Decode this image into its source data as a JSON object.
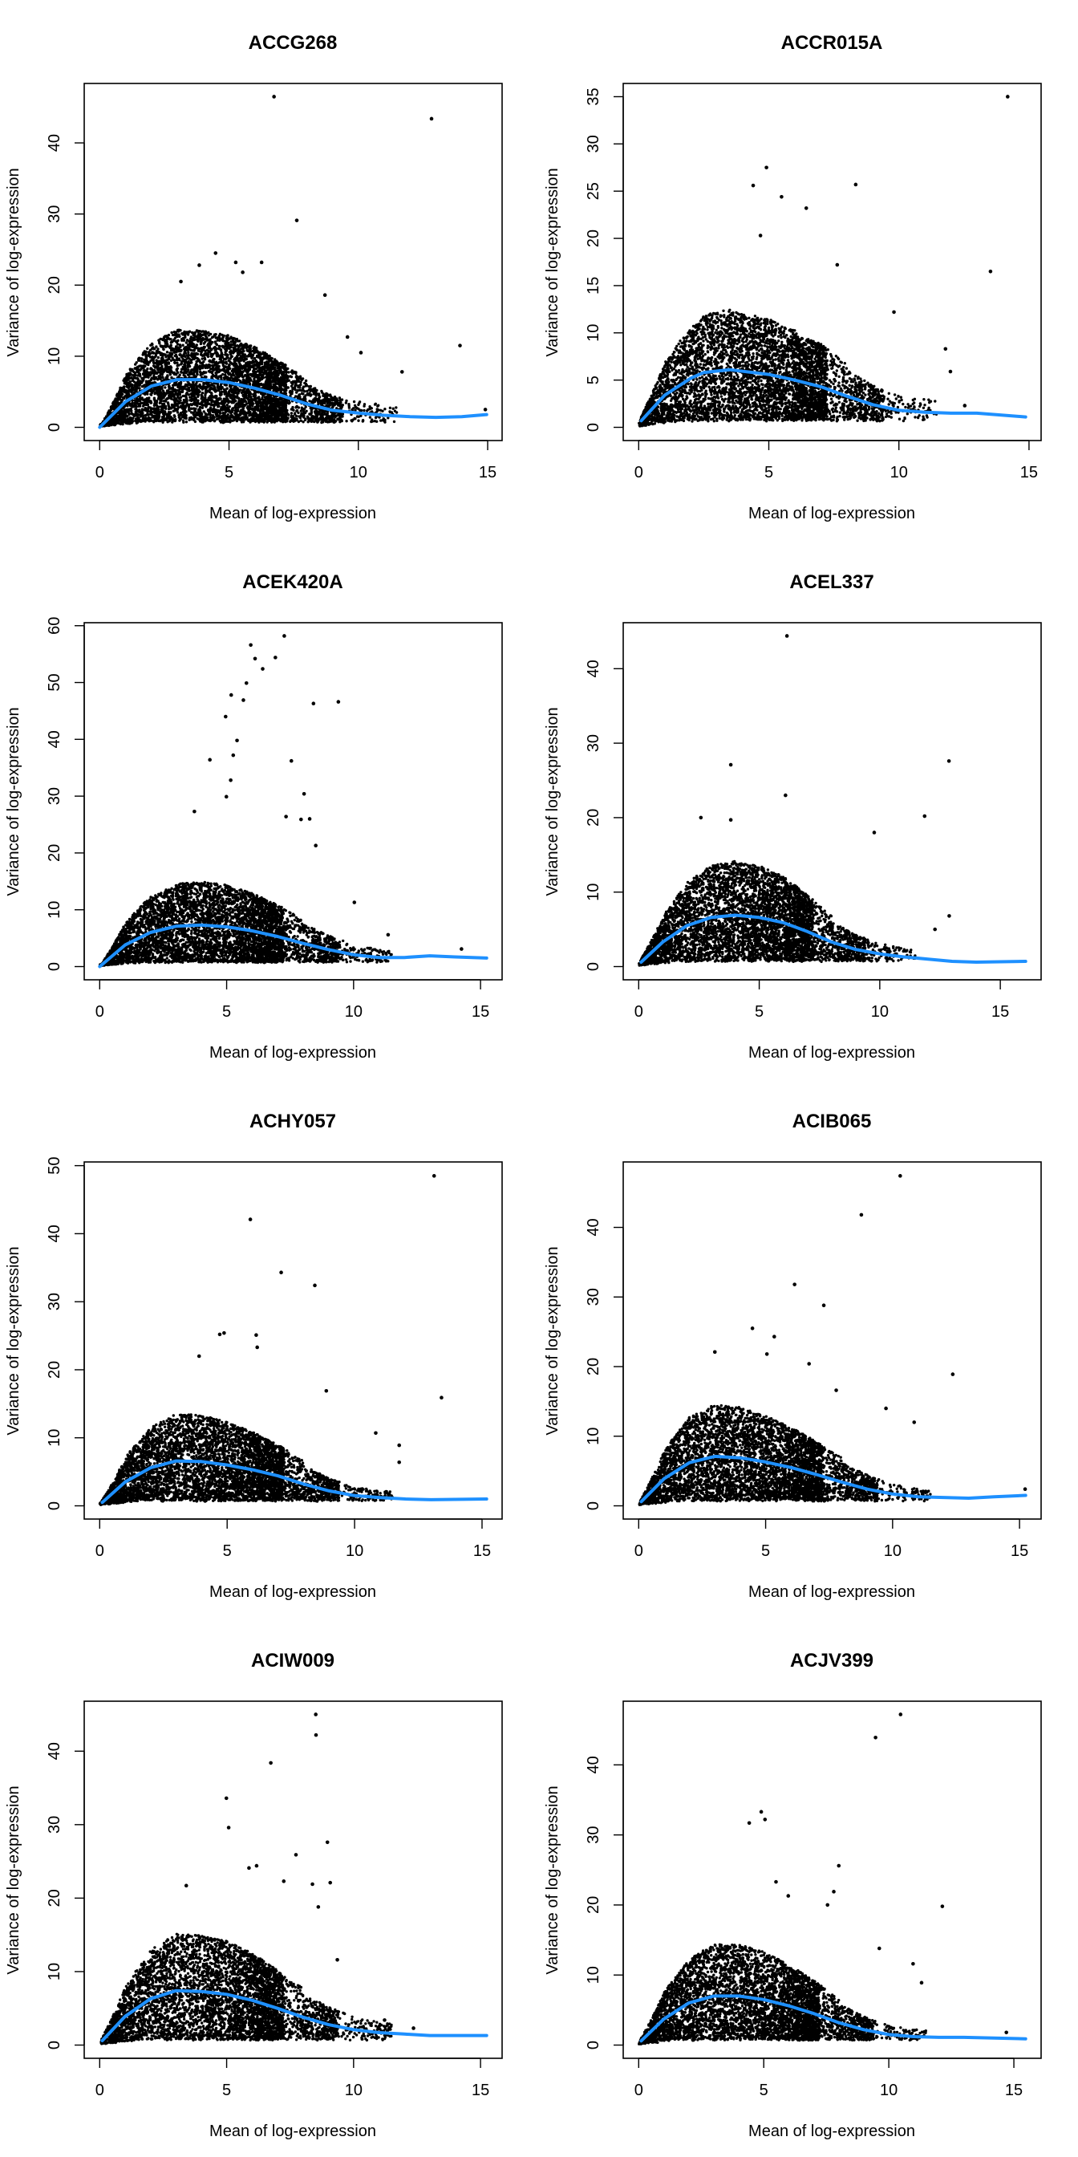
{
  "chart_data": [
    {
      "type": "scatter",
      "title": "ACCG268",
      "xlabel": "Mean of log-expression",
      "ylabel": "Variance of log-expression",
      "xlim": [
        0,
        14.96
      ],
      "ylim": [
        0,
        46.5
      ],
      "xticks": [
        0,
        5,
        10,
        15
      ],
      "yticks": [
        0,
        10,
        20,
        30,
        40
      ],
      "outliers": [
        [
          6.74,
          46.5
        ],
        [
          12.83,
          43.4
        ],
        [
          7.62,
          29.1
        ],
        [
          4.48,
          24.5
        ],
        [
          3.85,
          22.8
        ],
        [
          5.26,
          23.2
        ],
        [
          6.26,
          23.2
        ],
        [
          5.53,
          21.8
        ],
        [
          3.14,
          20.5
        ],
        [
          8.71,
          18.6
        ],
        [
          9.58,
          12.7
        ],
        [
          13.93,
          11.5
        ],
        [
          10.1,
          10.5
        ],
        [
          11.69,
          7.8
        ],
        [
          14.91,
          2.5
        ]
      ],
      "trend": [
        [
          0,
          0
        ],
        [
          1,
          3.6
        ],
        [
          2,
          5.8
        ],
        [
          3,
          6.7
        ],
        [
          4,
          6.7
        ],
        [
          5,
          6.3
        ],
        [
          6,
          5.5
        ],
        [
          7,
          4.5
        ],
        [
          8,
          3.3
        ],
        [
          9,
          2.4
        ],
        [
          10,
          2.0
        ],
        [
          11,
          1.7
        ],
        [
          12,
          1.5
        ],
        [
          13,
          1.4
        ],
        [
          14,
          1.5
        ],
        [
          14.96,
          1.8
        ]
      ]
    },
    {
      "type": "scatter",
      "title": "ACCR015A",
      "xlabel": "Mean of log-expression",
      "ylabel": "Variance of log-expression",
      "xlim": [
        0,
        14.87
      ],
      "ylim": [
        0,
        35.0
      ],
      "xticks": [
        0,
        5,
        10,
        15
      ],
      "yticks": [
        0,
        5,
        10,
        15,
        20,
        25,
        30,
        35
      ],
      "outliers": [
        [
          14.18,
          35.0
        ],
        [
          4.91,
          27.5
        ],
        [
          4.4,
          25.6
        ],
        [
          8.34,
          25.7
        ],
        [
          5.49,
          24.4
        ],
        [
          6.44,
          23.2
        ],
        [
          13.52,
          16.5
        ],
        [
          4.68,
          20.3
        ],
        [
          11.79,
          8.3
        ],
        [
          9.81,
          12.2
        ],
        [
          11.98,
          5.9
        ],
        [
          7.63,
          17.2
        ],
        [
          12.53,
          2.3
        ]
      ],
      "trend": [
        [
          0.1,
          0.7
        ],
        [
          1,
          3.4
        ],
        [
          2,
          5.2
        ],
        [
          2.5,
          5.8
        ],
        [
          3.5,
          6.1
        ],
        [
          5,
          5.6
        ],
        [
          6,
          5.0
        ],
        [
          7,
          4.3
        ],
        [
          8,
          3.3
        ],
        [
          9,
          2.4
        ],
        [
          10,
          1.8
        ],
        [
          11,
          1.6
        ],
        [
          12,
          1.5
        ],
        [
          13,
          1.5
        ],
        [
          14.87,
          1.1
        ]
      ]
    },
    {
      "type": "scatter",
      "title": "ACEK420A",
      "xlabel": "Mean of log-expression",
      "ylabel": "Variance of log-expression",
      "xlim": [
        0,
        15.24
      ],
      "ylim": [
        0,
        58.2
      ],
      "xticks": [
        0,
        5,
        10,
        15
      ],
      "yticks": [
        0,
        10,
        20,
        30,
        40,
        50,
        60
      ],
      "outliers": [
        [
          7.27,
          58.2
        ],
        [
          5.95,
          56.6
        ],
        [
          6.92,
          54.4
        ],
        [
          6.12,
          54.2
        ],
        [
          6.42,
          52.4
        ],
        [
          5.78,
          49.9
        ],
        [
          5.18,
          47.8
        ],
        [
          5.66,
          46.9
        ],
        [
          4.96,
          44.0
        ],
        [
          8.42,
          46.3
        ],
        [
          9.4,
          46.6
        ],
        [
          5.41,
          39.8
        ],
        [
          4.34,
          36.4
        ],
        [
          7.55,
          36.2
        ],
        [
          5.26,
          37.2
        ],
        [
          5.16,
          32.8
        ],
        [
          8.05,
          30.4
        ],
        [
          4.99,
          29.9
        ],
        [
          7.34,
          26.4
        ],
        [
          7.93,
          25.9
        ],
        [
          8.27,
          26.0
        ],
        [
          8.51,
          21.3
        ],
        [
          3.73,
          27.3
        ],
        [
          10.03,
          11.3
        ],
        [
          11.36,
          5.6
        ],
        [
          14.25,
          3.1
        ]
      ],
      "trend": [
        [
          0,
          0
        ],
        [
          1,
          3.8
        ],
        [
          2,
          6.0
        ],
        [
          3,
          7.1
        ],
        [
          4,
          7.3
        ],
        [
          5,
          7.0
        ],
        [
          6,
          6.3
        ],
        [
          7,
          5.3
        ],
        [
          8,
          4.1
        ],
        [
          9,
          3.0
        ],
        [
          10,
          2.1
        ],
        [
          11,
          1.6
        ],
        [
          12,
          1.6
        ],
        [
          13,
          1.9
        ],
        [
          14,
          1.7
        ],
        [
          15.24,
          1.5
        ]
      ]
    },
    {
      "type": "scatter",
      "title": "ACEL337",
      "xlabel": "Mean of log-expression",
      "ylabel": "Variance of log-expression",
      "xlim": [
        0,
        16.05
      ],
      "ylim": [
        0,
        44.4
      ],
      "xticks": [
        0,
        5,
        10,
        15
      ],
      "yticks": [
        0,
        10,
        20,
        30,
        40
      ],
      "outliers": [
        [
          6.15,
          44.4
        ],
        [
          3.82,
          27.1
        ],
        [
          12.87,
          27.6
        ],
        [
          6.09,
          23.0
        ],
        [
          11.86,
          20.2
        ],
        [
          9.77,
          18.0
        ],
        [
          2.58,
          20.0
        ],
        [
          3.82,
          19.7
        ],
        [
          12.88,
          6.8
        ],
        [
          12.29,
          5.0
        ]
      ],
      "trend": [
        [
          0.1,
          0.6
        ],
        [
          1,
          3.3
        ],
        [
          2,
          5.5
        ],
        [
          3,
          6.6
        ],
        [
          4,
          6.9
        ],
        [
          5,
          6.6
        ],
        [
          6,
          5.9
        ],
        [
          7,
          4.7
        ],
        [
          8,
          3.3
        ],
        [
          9,
          2.3
        ],
        [
          10,
          1.7
        ],
        [
          11,
          1.3
        ],
        [
          12,
          1.0
        ],
        [
          13,
          0.7
        ],
        [
          14,
          0.6
        ],
        [
          16.05,
          0.7
        ]
      ]
    },
    {
      "type": "scatter",
      "title": "ACHY057",
      "xlabel": "Mean of log-expression",
      "ylabel": "Variance of log-expression",
      "xlim": [
        0,
        15.18
      ],
      "ylim": [
        0,
        48.6
      ],
      "xticks": [
        0,
        5,
        10,
        15
      ],
      "yticks": [
        0,
        10,
        20,
        30,
        40,
        50
      ],
      "outliers": [
        [
          13.12,
          48.5
        ],
        [
          5.91,
          42.1
        ],
        [
          7.12,
          34.3
        ],
        [
          8.44,
          32.4
        ],
        [
          13.41,
          15.9
        ],
        [
          4.88,
          25.4
        ],
        [
          4.71,
          25.2
        ],
        [
          6.14,
          25.1
        ],
        [
          6.18,
          23.3
        ],
        [
          3.9,
          22.0
        ],
        [
          8.89,
          16.9
        ],
        [
          10.83,
          10.7
        ],
        [
          11.75,
          8.9
        ],
        [
          11.75,
          6.4
        ]
      ],
      "trend": [
        [
          0.1,
          0.5
        ],
        [
          1,
          3.5
        ],
        [
          2,
          5.6
        ],
        [
          3,
          6.6
        ],
        [
          4,
          6.5
        ],
        [
          5,
          6.0
        ],
        [
          6,
          5.3
        ],
        [
          7,
          4.4
        ],
        [
          8,
          3.2
        ],
        [
          9,
          2.2
        ],
        [
          10,
          1.5
        ],
        [
          11,
          1.2
        ],
        [
          12,
          1.0
        ],
        [
          13,
          0.9
        ],
        [
          15.18,
          1.0
        ]
      ]
    },
    {
      "type": "scatter",
      "title": "ACIB065",
      "xlabel": "Mean of log-expression",
      "ylabel": "Variance of log-expression",
      "xlim": [
        0,
        15.24
      ],
      "ylim": [
        0,
        47.5
      ],
      "xticks": [
        0,
        5,
        10,
        15
      ],
      "yticks": [
        0,
        10,
        20,
        30,
        40
      ],
      "outliers": [
        [
          10.3,
          47.4
        ],
        [
          8.77,
          41.8
        ],
        [
          6.14,
          31.8
        ],
        [
          7.29,
          28.8
        ],
        [
          4.48,
          25.5
        ],
        [
          5.34,
          24.3
        ],
        [
          12.37,
          18.9
        ],
        [
          3.0,
          22.1
        ],
        [
          5.05,
          21.8
        ],
        [
          6.71,
          20.4
        ],
        [
          7.78,
          16.6
        ],
        [
          9.74,
          14.0
        ],
        [
          10.85,
          12.0
        ],
        [
          15.22,
          2.4
        ]
      ],
      "trend": [
        [
          0.1,
          0.6
        ],
        [
          1,
          3.9
        ],
        [
          2,
          6.2
        ],
        [
          3,
          7.1
        ],
        [
          4,
          6.9
        ],
        [
          5,
          6.3
        ],
        [
          6,
          5.5
        ],
        [
          7,
          4.5
        ],
        [
          8,
          3.4
        ],
        [
          9,
          2.4
        ],
        [
          10,
          1.7
        ],
        [
          11,
          1.3
        ],
        [
          12,
          1.2
        ],
        [
          13,
          1.1
        ],
        [
          14,
          1.3
        ],
        [
          15.24,
          1.5
        ]
      ]
    },
    {
      "type": "scatter",
      "title": "ACIW009",
      "xlabel": "Mean of log-expression",
      "ylabel": "Variance of log-expression",
      "xlim": [
        0,
        15.24
      ],
      "ylim": [
        0,
        45.0
      ],
      "xticks": [
        0,
        5,
        10,
        15
      ],
      "yticks": [
        0,
        10,
        20,
        30,
        40
      ],
      "outliers": [
        [
          8.51,
          45.0
        ],
        [
          8.52,
          42.2
        ],
        [
          6.74,
          38.4
        ],
        [
          4.99,
          33.6
        ],
        [
          5.08,
          29.6
        ],
        [
          8.97,
          27.6
        ],
        [
          7.73,
          25.9
        ],
        [
          5.88,
          24.1
        ],
        [
          6.18,
          24.4
        ],
        [
          9.08,
          22.1
        ],
        [
          8.38,
          21.9
        ],
        [
          7.25,
          22.3
        ],
        [
          3.41,
          21.7
        ],
        [
          8.61,
          18.8
        ],
        [
          9.36,
          11.6
        ],
        [
          11.22,
          3.4
        ],
        [
          12.36,
          2.3
        ]
      ],
      "trend": [
        [
          0.1,
          0.6
        ],
        [
          1,
          3.9
        ],
        [
          2,
          6.3
        ],
        [
          3,
          7.4
        ],
        [
          4,
          7.3
        ],
        [
          5,
          6.9
        ],
        [
          6,
          6.1
        ],
        [
          7,
          5.0
        ],
        [
          8,
          3.8
        ],
        [
          9,
          2.8
        ],
        [
          10,
          2.1
        ],
        [
          11,
          1.7
        ],
        [
          12,
          1.5
        ],
        [
          13,
          1.3
        ],
        [
          15.24,
          1.3
        ]
      ]
    },
    {
      "type": "scatter",
      "title": "ACJV399",
      "xlabel": "Mean of log-expression",
      "ylabel": "Variance of log-expression",
      "xlim": [
        0,
        15.47
      ],
      "ylim": [
        0,
        47.2
      ],
      "xticks": [
        0,
        5,
        10,
        15
      ],
      "yticks": [
        0,
        10,
        20,
        30,
        40
      ],
      "outliers": [
        [
          10.47,
          47.2
        ],
        [
          9.47,
          43.9
        ],
        [
          4.9,
          33.3
        ],
        [
          5.05,
          32.2
        ],
        [
          4.42,
          31.7
        ],
        [
          8.0,
          25.6
        ],
        [
          5.49,
          23.3
        ],
        [
          7.8,
          21.9
        ],
        [
          12.14,
          19.8
        ],
        [
          7.55,
          20.0
        ],
        [
          5.98,
          21.3
        ],
        [
          9.62,
          13.8
        ],
        [
          10.97,
          11.6
        ],
        [
          11.31,
          8.9
        ],
        [
          14.7,
          1.8
        ]
      ],
      "trend": [
        [
          0.1,
          0.6
        ],
        [
          1,
          3.7
        ],
        [
          2,
          6.0
        ],
        [
          3,
          7.0
        ],
        [
          4,
          7.0
        ],
        [
          5,
          6.5
        ],
        [
          6,
          5.6
        ],
        [
          7,
          4.5
        ],
        [
          8,
          3.2
        ],
        [
          9,
          2.2
        ],
        [
          10,
          1.5
        ],
        [
          11,
          1.2
        ],
        [
          12,
          1.1
        ],
        [
          13,
          1.1
        ],
        [
          15.47,
          0.9
        ]
      ]
    }
  ],
  "colors": {
    "points": "#000000",
    "trend": "#1E90FF",
    "axes": "#000000"
  },
  "grid": false
}
